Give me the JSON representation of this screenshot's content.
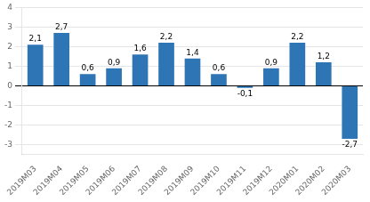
{
  "chart_data": {
    "type": "bar",
    "categories": [
      "2019M03",
      "2019M04",
      "2019M05",
      "2019M06",
      "2019M07",
      "2019M08",
      "2019M09",
      "2019M10",
      "2019M11",
      "2019M12",
      "2020M01",
      "2020M02",
      "2020M03"
    ],
    "values": [
      2.1,
      2.7,
      0.6,
      0.9,
      1.6,
      2.2,
      1.4,
      0.6,
      -0.1,
      0.9,
      2.2,
      1.2,
      -2.7
    ],
    "value_labels": [
      "2,1",
      "2,7",
      "0,6",
      "0,9",
      "1,6",
      "2,2",
      "1,4",
      "0,6",
      "-0,1",
      "0,9",
      "2,2",
      "1,2",
      "-2,7"
    ],
    "color": "#2E75B6",
    "ylim": [
      -3.5,
      4.0
    ],
    "yticks": [
      -3,
      -2,
      -1,
      0,
      1,
      2,
      3,
      4
    ],
    "grid": true,
    "data_labels": true
  }
}
